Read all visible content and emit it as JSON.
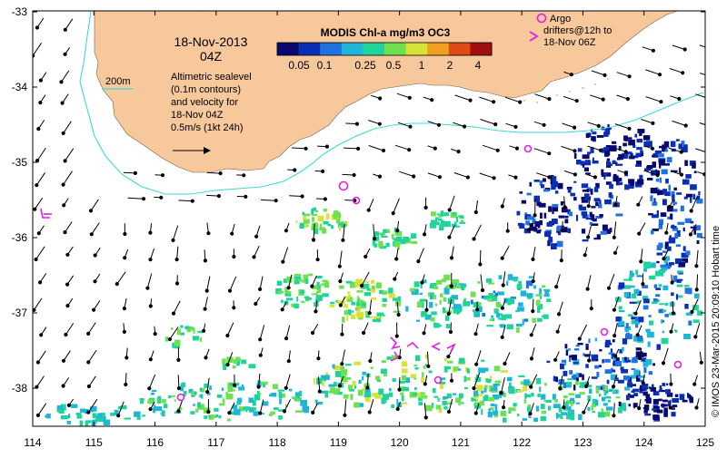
{
  "map": {
    "date": "18-Nov-2013",
    "time": "04Z",
    "colorbar_title": "MODIS Chl-a mg/m3 OC3",
    "colorbar_ticks": [
      "0.05",
      "0.1",
      "0.25",
      "0.5",
      "1",
      "2",
      "4"
    ],
    "colorbar_colors": [
      "#08086e",
      "#0a2fb5",
      "#1f73e0",
      "#20b5d8",
      "#1fd49a",
      "#6fe050",
      "#d8e238",
      "#f0a020",
      "#e04a18",
      "#a01010"
    ],
    "isobath_label": "200m",
    "legend_lines": [
      "Altimetric sealevel",
      "(0.1m contours)",
      "and velocity for",
      "18-Nov 04Z",
      "0.5m/s (1kt 24h)"
    ],
    "argo_lines": [
      "Argo",
      "drifters@12h to",
      "18-Nov 06Z"
    ],
    "credit": "© IMOS 23-Mar-2015 20:09:10 Hobart time",
    "lat_ticks": [
      "-33",
      "-34",
      "-35",
      "-36",
      "-37",
      "-38"
    ],
    "lon_ticks": [
      "114",
      "115",
      "116",
      "117",
      "118",
      "119",
      "120",
      "121",
      "122",
      "123",
      "124",
      "125"
    ],
    "colors": {
      "land": "#f7c89b",
      "ocean": "#ffffff",
      "isobath": "#40d8d8",
      "argo": "#e020e0",
      "arrows": "#000000"
    }
  }
}
